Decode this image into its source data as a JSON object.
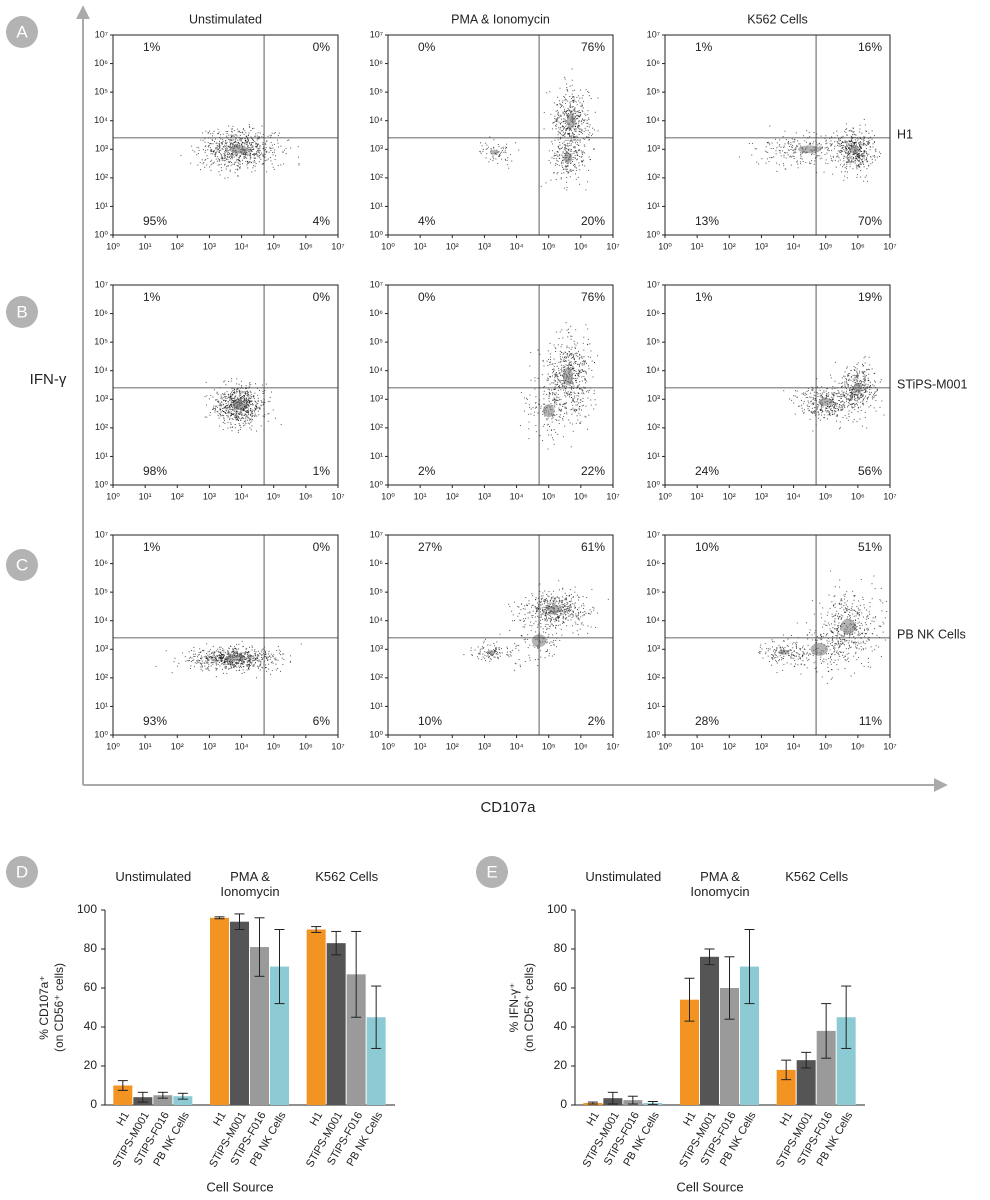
{
  "flow": {
    "columns": [
      "Unstimulated",
      "PMA & Ionomycin",
      "K562 Cells"
    ],
    "xlabel": "CD107a",
    "ylabel": "IFN-γ",
    "xlim": [
      0,
      7
    ],
    "ylim": [
      0,
      7
    ],
    "ticks": [
      {
        "value": 0,
        "label": "10⁰"
      },
      {
        "value": 1,
        "label": "10¹"
      },
      {
        "value": 2,
        "label": "10²"
      },
      {
        "value": 3,
        "label": "10³"
      },
      {
        "value": 4,
        "label": "10⁴"
      },
      {
        "value": 5,
        "label": "10⁵"
      },
      {
        "value": 6,
        "label": "10⁶"
      },
      {
        "value": 7,
        "label": "10⁷"
      }
    ],
    "gate": {
      "x": 4.7,
      "y": 3.4
    },
    "rows": [
      {
        "letter": "A",
        "label": "H1",
        "quadrants": [
          [
            "1%",
            "0%",
            "95%",
            "4%"
          ],
          [
            "0%",
            "76%",
            "4%",
            "20%"
          ],
          [
            "1%",
            "16%",
            "13%",
            "70%"
          ]
        ]
      },
      {
        "letter": "B",
        "label": "STiPS-M001",
        "quadrants": [
          [
            "1%",
            "0%",
            "98%",
            "1%"
          ],
          [
            "0%",
            "76%",
            "2%",
            "22%"
          ],
          [
            "1%",
            "19%",
            "24%",
            "56%"
          ]
        ]
      },
      {
        "letter": "C",
        "label": "PB NK Cells",
        "quadrants": [
          [
            "1%",
            "0%",
            "93%",
            "6%"
          ],
          [
            "27%",
            "61%",
            "10%",
            "2%"
          ],
          [
            "10%",
            "51%",
            "28%",
            "11%"
          ]
        ]
      }
    ]
  },
  "chart_data": [
    {
      "type": "bar",
      "letter": "D",
      "categories": [
        "Unstimulated",
        "PMA & Ionomycin",
        "K562 Cells"
      ],
      "ylabel": [
        "% CD107a⁺",
        "(on CD56⁺ cells)"
      ],
      "xlabel": "Cell Source",
      "ylim": [
        0,
        100
      ],
      "yticks": [
        0,
        20,
        40,
        60,
        80,
        100
      ],
      "series": [
        {
          "name": "H1",
          "color": "#f39322",
          "values": [
            10,
            96,
            90
          ],
          "errors": [
            2.5,
            0.5,
            1.5
          ]
        },
        {
          "name": "STiPS-M001",
          "color": "#555555",
          "values": [
            4,
            94,
            83
          ],
          "errors": [
            2.5,
            4,
            6
          ]
        },
        {
          "name": "STiPS-F016",
          "color": "#9a9a9a",
          "values": [
            5,
            81,
            67
          ],
          "errors": [
            1.5,
            15,
            22
          ]
        },
        {
          "name": "PB NK Cells",
          "color": "#8ccbd3",
          "values": [
            4.5,
            71,
            45
          ],
          "errors": [
            1.5,
            19,
            16
          ]
        }
      ]
    },
    {
      "type": "bar",
      "letter": "E",
      "categories": [
        "Unstimulated",
        "PMA & Ionomycin",
        "K562 Cells"
      ],
      "ylabel": [
        "% IFN-γ⁺",
        "(on CD56⁺ cells)"
      ],
      "xlabel": "Cell Source",
      "ylim": [
        0,
        100
      ],
      "yticks": [
        0,
        20,
        40,
        60,
        80,
        100
      ],
      "series": [
        {
          "name": "H1",
          "color": "#f39322",
          "values": [
            1,
            54,
            18
          ],
          "errors": [
            0.5,
            11,
            5
          ]
        },
        {
          "name": "STiPS-M001",
          "color": "#555555",
          "values": [
            3.5,
            76,
            23
          ],
          "errors": [
            3,
            4,
            4
          ]
        },
        {
          "name": "STiPS-F016",
          "color": "#9a9a9a",
          "values": [
            2.5,
            60,
            38
          ],
          "errors": [
            2,
            16,
            14
          ]
        },
        {
          "name": "PB NK Cells",
          "color": "#8ccbd3",
          "values": [
            1,
            71,
            45
          ],
          "errors": [
            0.8,
            19,
            16
          ]
        }
      ]
    }
  ]
}
